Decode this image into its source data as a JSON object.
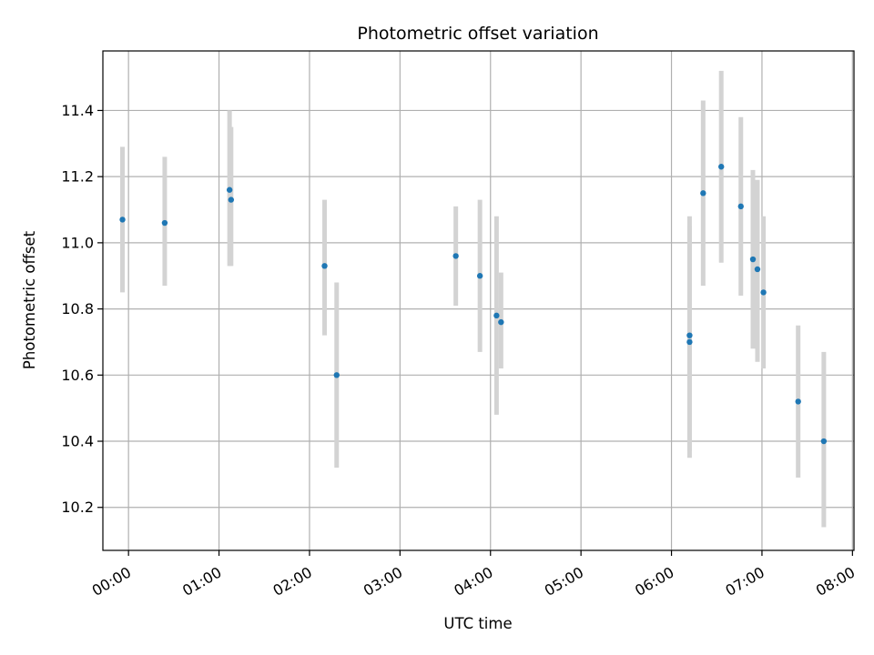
{
  "chart_data": {
    "type": "scatter",
    "title": "Photometric offset variation",
    "xlabel": "UTC time",
    "ylabel": "Photometric offset",
    "grid": true,
    "xlim": [
      "23:43",
      "08:01"
    ],
    "ylim": [
      10.07,
      11.58
    ],
    "x_ticks": [
      "00:00",
      "01:00",
      "02:00",
      "03:00",
      "04:00",
      "05:00",
      "06:00",
      "07:00",
      "08:00"
    ],
    "y_ticks": [
      "10.2",
      "10.4",
      "10.6",
      "10.8",
      "11.0",
      "11.2",
      "11.4"
    ],
    "colors": {
      "marker": "#1f77b4",
      "errorbar": "#d3d3d3",
      "grid": "#b0b0b0"
    },
    "points": [
      {
        "x": "23:56",
        "y": 11.07,
        "ylo": 10.85,
        "yhi": 11.29
      },
      {
        "x": "00:24",
        "y": 11.06,
        "ylo": 10.87,
        "yhi": 11.26
      },
      {
        "x": "01:07",
        "y": 11.16,
        "ylo": 10.93,
        "yhi": 11.4
      },
      {
        "x": "01:08",
        "y": 11.13,
        "ylo": 10.93,
        "yhi": 11.35
      },
      {
        "x": "02:10",
        "y": 10.93,
        "ylo": 10.72,
        "yhi": 11.13
      },
      {
        "x": "02:18",
        "y": 10.6,
        "ylo": 10.32,
        "yhi": 10.88
      },
      {
        "x": "03:37",
        "y": 10.96,
        "ylo": 10.81,
        "yhi": 11.11
      },
      {
        "x": "03:53",
        "y": 10.9,
        "ylo": 10.67,
        "yhi": 11.13
      },
      {
        "x": "04:04",
        "y": 10.78,
        "ylo": 10.48,
        "yhi": 11.08
      },
      {
        "x": "04:07",
        "y": 10.76,
        "ylo": 10.62,
        "yhi": 10.91
      },
      {
        "x": "06:12",
        "y": 10.72,
        "ylo": 10.37,
        "yhi": 11.08
      },
      {
        "x": "06:12",
        "y": 10.7,
        "ylo": 10.35,
        "yhi": 11.05
      },
      {
        "x": "06:21",
        "y": 11.15,
        "ylo": 10.87,
        "yhi": 11.43
      },
      {
        "x": "06:33",
        "y": 11.23,
        "ylo": 10.94,
        "yhi": 11.52
      },
      {
        "x": "06:46",
        "y": 11.11,
        "ylo": 10.84,
        "yhi": 11.38
      },
      {
        "x": "06:54",
        "y": 10.95,
        "ylo": 10.68,
        "yhi": 11.22
      },
      {
        "x": "06:57",
        "y": 10.92,
        "ylo": 10.64,
        "yhi": 11.19
      },
      {
        "x": "07:01",
        "y": 10.85,
        "ylo": 10.62,
        "yhi": 11.08
      },
      {
        "x": "07:24",
        "y": 10.52,
        "ylo": 10.29,
        "yhi": 10.75
      },
      {
        "x": "07:41",
        "y": 10.4,
        "ylo": 10.14,
        "yhi": 10.67
      }
    ]
  }
}
